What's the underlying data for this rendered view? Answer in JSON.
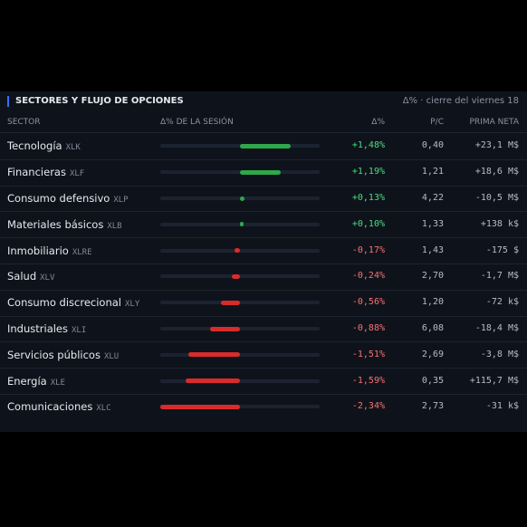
{
  "header": {
    "title": "SECTORES Y FLUJO DE OPCIONES",
    "note": "Δ% · cierre del viernes 18"
  },
  "table": {
    "columns": [
      "SECTOR",
      "Δ% DE LA SESIÓN",
      "Δ%",
      "P/C",
      "PRIMA NETA"
    ],
    "rows": [
      {
        "sector": "Tecnología",
        "ticker": "XLK",
        "change": 1.48,
        "change_label": "+1,48%",
        "pc": "0,40",
        "premium": "+23,1 M$"
      },
      {
        "sector": "Financieras",
        "ticker": "XLF",
        "change": 1.19,
        "change_label": "+1,19%",
        "pc": "1,21",
        "premium": "+18,6 M$"
      },
      {
        "sector": "Consumo defensivo",
        "ticker": "XLP",
        "change": 0.13,
        "change_label": "+0,13%",
        "pc": "4,22",
        "premium": "-10,5 M$"
      },
      {
        "sector": "Materiales básicos",
        "ticker": "XLB",
        "change": 0.1,
        "change_label": "+0,10%",
        "pc": "1,33",
        "premium": "+138 k$"
      },
      {
        "sector": "Inmobiliario",
        "ticker": "XLRE",
        "change": -0.17,
        "change_label": "-0,17%",
        "pc": "1,43",
        "premium": "-175 $"
      },
      {
        "sector": "Salud",
        "ticker": "XLV",
        "change": -0.24,
        "change_label": "-0,24%",
        "pc": "2,70",
        "premium": "-1,7 M$"
      },
      {
        "sector": "Consumo discrecional",
        "ticker": "XLY",
        "change": -0.56,
        "change_label": "-0,56%",
        "pc": "1,20",
        "premium": "-72 k$"
      },
      {
        "sector": "Industriales",
        "ticker": "XLI",
        "change": -0.88,
        "change_label": "-0,88%",
        "pc": "6,08",
        "premium": "-18,4 M$"
      },
      {
        "sector": "Servicios públicos",
        "ticker": "XLU",
        "change": -1.51,
        "change_label": "-1,51%",
        "pc": "2,69",
        "premium": "-3,8 M$"
      },
      {
        "sector": "Energía",
        "ticker": "XLE",
        "change": -1.59,
        "change_label": "-1,59%",
        "pc": "0,35",
        "premium": "+115,7 M$"
      },
      {
        "sector": "Comunicaciones",
        "ticker": "XLC",
        "change": -2.34,
        "change_label": "-2,34%",
        "pc": "2,73",
        "premium": "-31 k$"
      }
    ]
  }
}
